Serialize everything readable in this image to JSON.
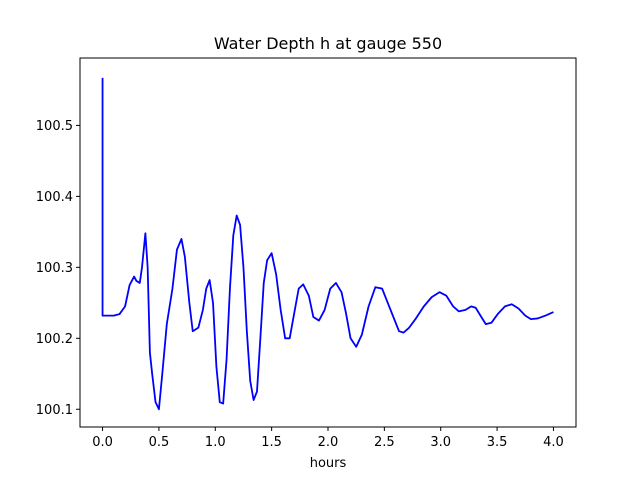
{
  "chart_data": {
    "type": "line",
    "title": "Water Depth h at gauge 550",
    "xlabel": "hours",
    "ylabel": "",
    "xlim": [
      -0.2,
      4.2
    ],
    "ylim": [
      100.075,
      100.595
    ],
    "xticks": [
      0.0,
      0.5,
      1.0,
      1.5,
      2.0,
      2.5,
      3.0,
      3.5,
      4.0
    ],
    "xtick_labels": [
      "0.0",
      "0.5",
      "1.0",
      "1.5",
      "2.0",
      "2.5",
      "3.0",
      "3.5",
      "4.0"
    ],
    "yticks": [
      100.1,
      100.2,
      100.3,
      100.4,
      100.5
    ],
    "ytick_labels": [
      "100.1",
      "100.2",
      "100.3",
      "100.4",
      "100.5"
    ],
    "grid": false,
    "series": [
      {
        "color": "#0000ff",
        "x": [
          0.0,
          0.0,
          0.0,
          0.05,
          0.1,
          0.15,
          0.2,
          0.24,
          0.28,
          0.3,
          0.33,
          0.35,
          0.38,
          0.4,
          0.42,
          0.44,
          0.47,
          0.5,
          0.53,
          0.57,
          0.62,
          0.66,
          0.7,
          0.73,
          0.77,
          0.8,
          0.85,
          0.89,
          0.92,
          0.95,
          0.98,
          1.01,
          1.04,
          1.07,
          1.1,
          1.13,
          1.16,
          1.19,
          1.22,
          1.25,
          1.28,
          1.31,
          1.34,
          1.37,
          1.4,
          1.43,
          1.46,
          1.5,
          1.54,
          1.58,
          1.62,
          1.66,
          1.7,
          1.74,
          1.78,
          1.83,
          1.87,
          1.92,
          1.97,
          2.02,
          2.07,
          2.12,
          2.16,
          2.2,
          2.25,
          2.3,
          2.36,
          2.42,
          2.48,
          2.53,
          2.58,
          2.63,
          2.67,
          2.72,
          2.78,
          2.85,
          2.92,
          2.99,
          3.05,
          3.11,
          3.16,
          3.22,
          3.27,
          3.31,
          3.36,
          3.4,
          3.45,
          3.51,
          3.57,
          3.63,
          3.69,
          3.75,
          3.8,
          3.86,
          3.93,
          4.0
        ],
        "y": [
          100.567,
          100.232,
          100.232,
          100.232,
          100.232,
          100.234,
          100.245,
          100.275,
          100.287,
          100.281,
          100.278,
          100.3,
          100.348,
          100.3,
          100.18,
          100.15,
          100.11,
          100.1,
          100.15,
          100.22,
          100.27,
          100.325,
          100.34,
          100.315,
          100.25,
          100.21,
          100.215,
          100.24,
          100.27,
          100.282,
          100.25,
          100.16,
          100.11,
          100.108,
          100.17,
          100.27,
          100.345,
          100.373,
          100.36,
          100.3,
          100.21,
          100.14,
          100.113,
          100.125,
          100.2,
          100.278,
          100.31,
          100.32,
          100.29,
          100.24,
          100.2,
          100.2,
          100.235,
          100.27,
          100.276,
          100.26,
          100.23,
          100.225,
          100.24,
          100.27,
          100.278,
          100.265,
          100.235,
          100.2,
          100.188,
          100.205,
          100.245,
          100.272,
          100.27,
          100.25,
          100.23,
          100.21,
          100.208,
          100.215,
          100.228,
          100.245,
          100.258,
          100.265,
          100.26,
          100.245,
          100.238,
          100.24,
          100.245,
          100.243,
          100.23,
          100.22,
          100.222,
          100.235,
          100.245,
          100.248,
          100.242,
          100.232,
          100.227,
          100.228,
          100.232,
          100.237
        ]
      }
    ]
  }
}
